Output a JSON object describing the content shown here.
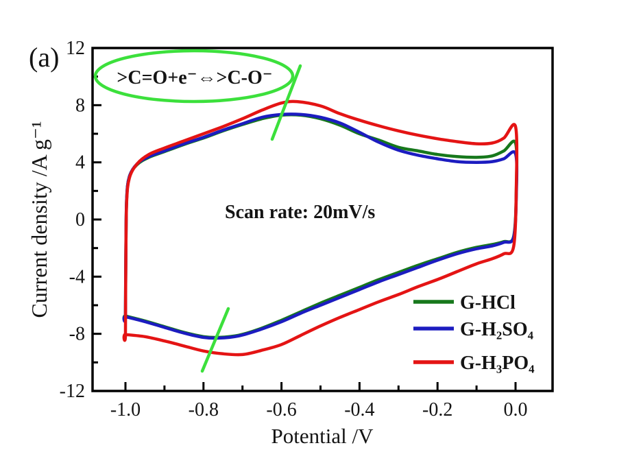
{
  "figure": {
    "panel_label": "(a)"
  },
  "chart_data": {
    "type": "line",
    "chart_kind": "cyclic-voltammogram",
    "title": "",
    "xlabel": "Potential /V",
    "ylabel": "Current density /A g⁻¹",
    "xlim": [
      -1.09,
      0.1
    ],
    "ylim": [
      -12,
      12
    ],
    "grid": false,
    "legend_position": "lower right",
    "x_ticks": {
      "values": [
        -1.0,
        -0.8,
        -0.6,
        -0.4,
        -0.2,
        0.0
      ],
      "labels": [
        "-1.0",
        "-0.8",
        "-0.6",
        "-0.4",
        "-0.2",
        "0.0"
      ],
      "minor": [
        -0.9,
        -0.7,
        -0.5,
        -0.3,
        -0.1
      ]
    },
    "y_ticks": {
      "values": [
        12,
        8,
        4,
        0,
        -4,
        -8,
        -12
      ],
      "labels": [
        "12",
        "8",
        "4",
        "0",
        "-4",
        "-8",
        "-12"
      ],
      "minor": [
        10,
        6,
        2,
        -2,
        -6,
        -10
      ]
    },
    "annotations": {
      "reaction": ">C=O+e⁻⇔>C-O⁻",
      "scan_rate": "Scan rate: 20mV/s"
    },
    "marker_color": "#3ce03c",
    "series": [
      {
        "name": "G-HCl",
        "color": "#17781c",
        "upper": [
          [
            -1.0,
            -6.75
          ],
          [
            -0.999,
            -2.2
          ],
          [
            -0.997,
            1.4
          ],
          [
            -0.99,
            3.0
          ],
          [
            -0.97,
            3.85
          ],
          [
            -0.94,
            4.35
          ],
          [
            -0.9,
            4.75
          ],
          [
            -0.85,
            5.25
          ],
          [
            -0.8,
            5.7
          ],
          [
            -0.75,
            6.2
          ],
          [
            -0.7,
            6.65
          ],
          [
            -0.65,
            7.05
          ],
          [
            -0.6,
            7.3
          ],
          [
            -0.55,
            7.3
          ],
          [
            -0.5,
            7.05
          ],
          [
            -0.45,
            6.6
          ],
          [
            -0.4,
            6.0
          ],
          [
            -0.35,
            5.55
          ],
          [
            -0.3,
            5.05
          ],
          [
            -0.25,
            4.8
          ],
          [
            -0.2,
            4.55
          ],
          [
            -0.15,
            4.4
          ],
          [
            -0.1,
            4.35
          ],
          [
            -0.06,
            4.45
          ],
          [
            -0.03,
            4.8
          ],
          [
            0.0,
            5.35
          ]
        ],
        "lower": [
          [
            -1.0,
            -6.75
          ],
          [
            -0.95,
            -7.1
          ],
          [
            -0.9,
            -7.5
          ],
          [
            -0.85,
            -7.9
          ],
          [
            -0.8,
            -8.2
          ],
          [
            -0.76,
            -8.25
          ],
          [
            -0.71,
            -8.1
          ],
          [
            -0.66,
            -7.7
          ],
          [
            -0.6,
            -7.05
          ],
          [
            -0.55,
            -6.45
          ],
          [
            -0.5,
            -5.85
          ],
          [
            -0.45,
            -5.3
          ],
          [
            -0.4,
            -4.75
          ],
          [
            -0.35,
            -4.2
          ],
          [
            -0.3,
            -3.7
          ],
          [
            -0.25,
            -3.2
          ],
          [
            -0.2,
            -2.75
          ],
          [
            -0.15,
            -2.3
          ],
          [
            -0.1,
            -1.95
          ],
          [
            -0.06,
            -1.75
          ],
          [
            -0.03,
            -1.55
          ],
          [
            -0.005,
            -1.2
          ]
        ]
      },
      {
        "name": "G-H₂SO₄",
        "color": "#1c1cc0",
        "upper": [
          [
            -1.0,
            -6.8
          ],
          [
            -0.999,
            -2.2
          ],
          [
            -0.997,
            1.4
          ],
          [
            -0.99,
            3.0
          ],
          [
            -0.97,
            3.9
          ],
          [
            -0.94,
            4.4
          ],
          [
            -0.9,
            4.8
          ],
          [
            -0.85,
            5.3
          ],
          [
            -0.8,
            5.75
          ],
          [
            -0.75,
            6.25
          ],
          [
            -0.7,
            6.7
          ],
          [
            -0.65,
            7.15
          ],
          [
            -0.6,
            7.35
          ],
          [
            -0.55,
            7.35
          ],
          [
            -0.5,
            7.15
          ],
          [
            -0.45,
            6.75
          ],
          [
            -0.4,
            6.1
          ],
          [
            -0.35,
            5.4
          ],
          [
            -0.3,
            4.85
          ],
          [
            -0.25,
            4.5
          ],
          [
            -0.2,
            4.25
          ],
          [
            -0.15,
            4.05
          ],
          [
            -0.1,
            4.0
          ],
          [
            -0.06,
            4.05
          ],
          [
            -0.03,
            4.25
          ],
          [
            0.0,
            4.6
          ]
        ],
        "lower": [
          [
            -1.0,
            -6.8
          ],
          [
            -0.95,
            -7.15
          ],
          [
            -0.9,
            -7.55
          ],
          [
            -0.85,
            -7.95
          ],
          [
            -0.8,
            -8.25
          ],
          [
            -0.76,
            -8.3
          ],
          [
            -0.71,
            -8.15
          ],
          [
            -0.66,
            -7.75
          ],
          [
            -0.6,
            -7.15
          ],
          [
            -0.55,
            -6.55
          ],
          [
            -0.5,
            -6.0
          ],
          [
            -0.45,
            -5.45
          ],
          [
            -0.4,
            -4.9
          ],
          [
            -0.35,
            -4.35
          ],
          [
            -0.3,
            -3.85
          ],
          [
            -0.25,
            -3.35
          ],
          [
            -0.2,
            -2.85
          ],
          [
            -0.15,
            -2.4
          ],
          [
            -0.1,
            -2.05
          ],
          [
            -0.06,
            -1.85
          ],
          [
            -0.03,
            -1.6
          ],
          [
            -0.005,
            -1.25
          ]
        ]
      },
      {
        "name": "G-H₃PO₄",
        "color": "#e41414",
        "upper": [
          [
            -1.0,
            -8.05
          ],
          [
            -0.999,
            -2.5
          ],
          [
            -0.997,
            1.2
          ],
          [
            -0.99,
            2.9
          ],
          [
            -0.97,
            3.9
          ],
          [
            -0.94,
            4.55
          ],
          [
            -0.9,
            5.0
          ],
          [
            -0.85,
            5.5
          ],
          [
            -0.8,
            6.0
          ],
          [
            -0.75,
            6.5
          ],
          [
            -0.7,
            7.05
          ],
          [
            -0.65,
            7.65
          ],
          [
            -0.6,
            8.15
          ],
          [
            -0.56,
            8.25
          ],
          [
            -0.5,
            7.95
          ],
          [
            -0.45,
            7.4
          ],
          [
            -0.4,
            6.95
          ],
          [
            -0.35,
            6.55
          ],
          [
            -0.3,
            6.2
          ],
          [
            -0.25,
            5.9
          ],
          [
            -0.2,
            5.65
          ],
          [
            -0.15,
            5.45
          ],
          [
            -0.1,
            5.3
          ],
          [
            -0.06,
            5.35
          ],
          [
            -0.03,
            5.7
          ],
          [
            0.0,
            6.5
          ]
        ],
        "lower": [
          [
            -1.0,
            -8.05
          ],
          [
            -0.95,
            -8.2
          ],
          [
            -0.9,
            -8.5
          ],
          [
            -0.85,
            -8.85
          ],
          [
            -0.8,
            -9.2
          ],
          [
            -0.75,
            -9.4
          ],
          [
            -0.7,
            -9.45
          ],
          [
            -0.65,
            -9.15
          ],
          [
            -0.6,
            -8.75
          ],
          [
            -0.55,
            -8.1
          ],
          [
            -0.5,
            -7.45
          ],
          [
            -0.45,
            -6.85
          ],
          [
            -0.4,
            -6.3
          ],
          [
            -0.35,
            -5.75
          ],
          [
            -0.3,
            -5.25
          ],
          [
            -0.25,
            -4.7
          ],
          [
            -0.2,
            -4.2
          ],
          [
            -0.15,
            -3.65
          ],
          [
            -0.1,
            -3.1
          ],
          [
            -0.06,
            -2.75
          ],
          [
            -0.03,
            -2.4
          ],
          [
            -0.005,
            -1.9
          ]
        ]
      }
    ]
  }
}
